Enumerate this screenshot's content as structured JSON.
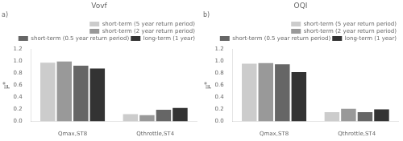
{
  "chart_data": [
    {
      "type": "bar",
      "title": "Vovf",
      "subtitle": "a)",
      "categories": [
        "Qmax,ST8",
        "Qthrottle,ST4"
      ],
      "series": [
        {
          "name": "short-term (5 year return period)",
          "color": "#cccccc",
          "values": [
            0.975,
            0.12
          ]
        },
        {
          "name": "short-term (2 year return period)",
          "color": "#999999",
          "values": [
            0.995,
            0.105
          ]
        },
        {
          "name": "short-term (0.5 year return period)",
          "color": "#666666",
          "values": [
            0.925,
            0.195
          ]
        },
        {
          "name": "long-term (1 year)",
          "color": "#333333",
          "values": [
            0.88,
            0.225
          ]
        }
      ],
      "ylabel": "μ*",
      "ylim": [
        0.0,
        1.2
      ],
      "yticks": [
        {
          "value": 0.0,
          "label": "0.0"
        },
        0.2,
        0.4,
        0.6,
        0.8,
        {
          "value": 1.0,
          "label": "1.0"
        },
        1.2
      ],
      "grid": false,
      "legend": "upper right"
    },
    {
      "type": "bar",
      "title": "OQI",
      "subtitle": "b)",
      "categories": [
        "Qmax,ST8",
        "Qthrottle,ST4"
      ],
      "series": [
        {
          "name": "short-term (5 year return period)",
          "color": "#cccccc",
          "values": [
            0.96,
            0.155
          ]
        },
        {
          "name": "short-term (2 year return period)",
          "color": "#999999",
          "values": [
            0.97,
            0.21
          ]
        },
        {
          "name": "short-term (0.5 year return period)",
          "color": "#666666",
          "values": [
            0.95,
            0.155
          ]
        },
        {
          "name": "long-term (1 year)",
          "color": "#333333",
          "values": [
            0.82,
            0.2
          ]
        }
      ],
      "ylabel": "μ*",
      "ylim": [
        0.0,
        1.2
      ],
      "yticks": [
        {
          "value": 0.0,
          "label": "0.0"
        },
        0.2,
        0.4,
        0.6,
        0.8,
        {
          "value": 1.0,
          "label": "1.0"
        },
        1.2
      ],
      "grid": false,
      "legend": "upper right"
    }
  ]
}
